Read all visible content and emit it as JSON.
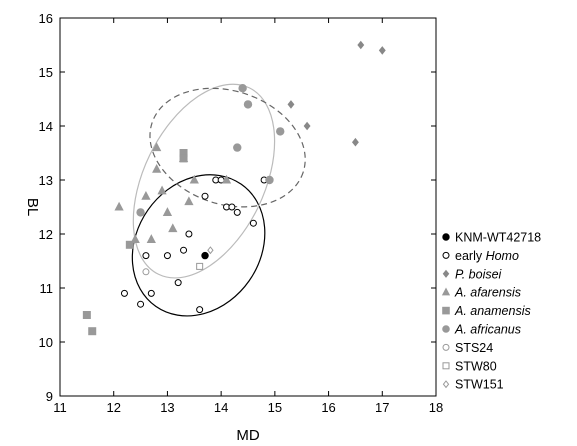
{
  "chart_data": {
    "type": "scatter",
    "xlabel": "MD",
    "ylabel": "BL",
    "xlim": [
      11,
      18
    ],
    "ylim": [
      9,
      16
    ],
    "x_ticks": [
      "11",
      "12",
      "13",
      "14",
      "15",
      "16",
      "17",
      "18"
    ],
    "y_ticks": [
      "9",
      "10",
      "11",
      "12",
      "13",
      "14",
      "15",
      "16"
    ],
    "grid": false,
    "legend_position": "right",
    "series": [
      {
        "name_parts": [
          {
            "text": "KNM-WT42718",
            "italic": false
          }
        ],
        "marker": "circle",
        "fill": "#000000",
        "stroke": "#000000",
        "size": 3.2,
        "points": [
          [
            13.7,
            11.6
          ]
        ]
      },
      {
        "name_parts": [
          {
            "text": "early ",
            "italic": false
          },
          {
            "text": "Homo",
            "italic": true
          }
        ],
        "marker": "circle",
        "fill": "#ffffff",
        "stroke": "#000000",
        "size": 3.0,
        "points": [
          [
            12.2,
            10.9
          ],
          [
            12.5,
            10.7
          ],
          [
            12.6,
            11.6
          ],
          [
            12.7,
            10.9
          ],
          [
            13.0,
            11.6
          ],
          [
            13.2,
            11.1
          ],
          [
            13.3,
            11.7
          ],
          [
            13.4,
            12.0
          ],
          [
            13.6,
            10.6
          ],
          [
            13.7,
            12.7
          ],
          [
            13.9,
            13.0
          ],
          [
            14.0,
            13.0
          ],
          [
            14.1,
            12.5
          ],
          [
            14.2,
            12.5
          ],
          [
            14.3,
            12.4
          ],
          [
            14.6,
            12.2
          ],
          [
            14.8,
            13.0
          ]
        ]
      },
      {
        "name_parts": [
          {
            "text": "P. boisei",
            "italic": true
          }
        ],
        "marker": "diamond",
        "fill": "#888888",
        "stroke": "#888888",
        "size": 3.5,
        "points": [
          [
            15.3,
            14.4
          ],
          [
            15.6,
            14.0
          ],
          [
            16.5,
            13.7
          ],
          [
            16.6,
            15.5
          ],
          [
            17.0,
            15.4
          ]
        ]
      },
      {
        "name_parts": [
          {
            "text": "A. afarensis",
            "italic": true
          }
        ],
        "marker": "triangle",
        "fill": "#999999",
        "stroke": "#999999",
        "size": 3.8,
        "points": [
          [
            12.1,
            12.5
          ],
          [
            12.4,
            11.9
          ],
          [
            12.6,
            12.7
          ],
          [
            12.7,
            11.9
          ],
          [
            12.8,
            13.2
          ],
          [
            12.8,
            13.6
          ],
          [
            12.9,
            12.8
          ],
          [
            13.0,
            12.4
          ],
          [
            13.1,
            12.1
          ],
          [
            13.3,
            13.4
          ],
          [
            13.4,
            12.6
          ],
          [
            13.5,
            13.0
          ],
          [
            14.1,
            13.0
          ]
        ]
      },
      {
        "name_parts": [
          {
            "text": "A. anamensis",
            "italic": true
          }
        ],
        "marker": "square",
        "fill": "#999999",
        "stroke": "#999999",
        "size": 3.5,
        "points": [
          [
            11.5,
            10.5
          ],
          [
            11.6,
            10.2
          ],
          [
            12.3,
            11.8
          ],
          [
            13.3,
            13.5
          ],
          [
            13.3,
            13.4
          ]
        ]
      },
      {
        "name_parts": [
          {
            "text": "A. africanus",
            "italic": true
          }
        ],
        "marker": "circle",
        "fill": "#999999",
        "stroke": "#999999",
        "size": 3.7,
        "points": [
          [
            12.5,
            12.4
          ],
          [
            14.3,
            13.6
          ],
          [
            14.4,
            14.7
          ],
          [
            14.5,
            14.4
          ],
          [
            15.1,
            13.9
          ],
          [
            14.9,
            13.0
          ]
        ]
      },
      {
        "name_parts": [
          {
            "text": "STS24",
            "italic": false
          }
        ],
        "marker": "circle",
        "fill": "#ffffff",
        "stroke": "#999999",
        "size": 3.0,
        "points": [
          [
            12.6,
            11.3
          ]
        ]
      },
      {
        "name_parts": [
          {
            "text": "STW80",
            "italic": false
          }
        ],
        "marker": "square",
        "fill": "#ffffff",
        "stroke": "#999999",
        "size": 3.0,
        "points": [
          [
            13.6,
            11.4
          ]
        ]
      },
      {
        "name_parts": [
          {
            "text": "STW151",
            "italic": false
          }
        ],
        "marker": "diamond",
        "fill": "#ffffff",
        "stroke": "#999999",
        "size": 3.2,
        "points": [
          [
            13.8,
            11.7
          ]
        ]
      }
    ],
    "ellipses": [
      {
        "name": "early-homo-ellipse",
        "cx": 13.58,
        "cy": 11.79,
        "rx": 1.15,
        "ry": 1.38,
        "angle_deg": 35,
        "color": "#000000",
        "dash": false
      },
      {
        "name": "afarensis-ellipse",
        "cx": 13.68,
        "cy": 12.98,
        "rx": 1.12,
        "ry": 1.92,
        "angle_deg": 26,
        "color": "#bbbbbb",
        "dash": false
      },
      {
        "name": "africanus-ellipse",
        "cx": 14.12,
        "cy": 13.6,
        "rx": 1.48,
        "ry": 1.05,
        "angle_deg": 18,
        "color": "#666666",
        "dash": true
      }
    ]
  }
}
